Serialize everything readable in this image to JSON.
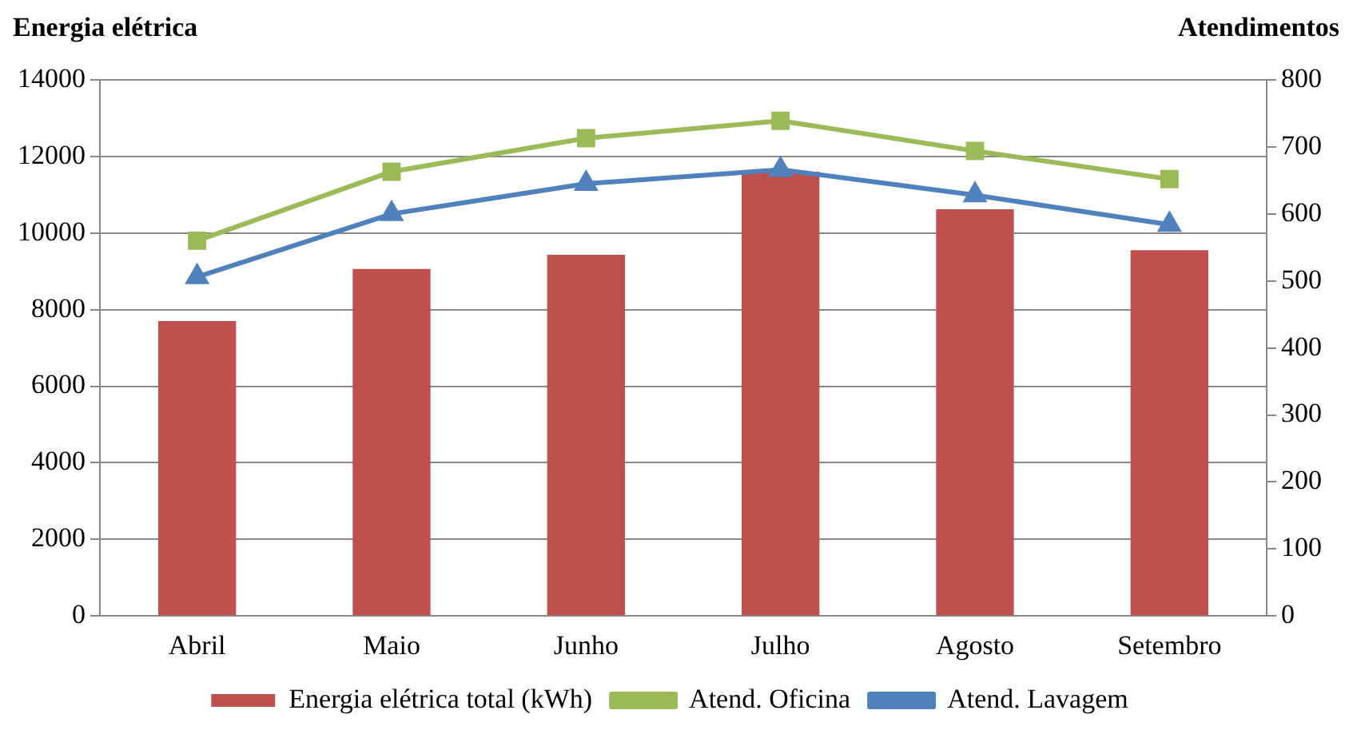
{
  "chart_data": {
    "type": "bar",
    "ylabel": "Energia elétrica",
    "y2label": "Atendimentos",
    "categories": [
      "Abril",
      "Maio",
      "Junho",
      "Julho",
      "Agosto",
      "Setembro"
    ],
    "series": [
      {
        "name": "Energia elétrica total (kWh)",
        "color": "#c0504d",
        "values": [
          7700,
          9060,
          9430,
          11600,
          10620,
          9550
        ]
      },
      {
        "name": "Atend. Oficina",
        "type": "line",
        "axis": "y2",
        "marker": "square",
        "color": "#9bbb59",
        "values": [
          560,
          663,
          713,
          739,
          694,
          652
        ]
      },
      {
        "name": "Atend. Lavagem",
        "type": "line",
        "axis": "y2",
        "marker": "triangle",
        "color": "#4f81bd",
        "values": [
          506,
          600,
          645,
          666,
          628,
          584
        ]
      }
    ],
    "ylim": [
      0,
      14000
    ],
    "yticks": [
      0,
      2000,
      4000,
      6000,
      8000,
      10000,
      12000,
      14000
    ],
    "y2lim": [
      0,
      800
    ],
    "y2ticks": [
      0,
      100,
      200,
      300,
      400,
      500,
      600,
      700,
      800
    ],
    "grid": "y",
    "legend": "bottom"
  }
}
